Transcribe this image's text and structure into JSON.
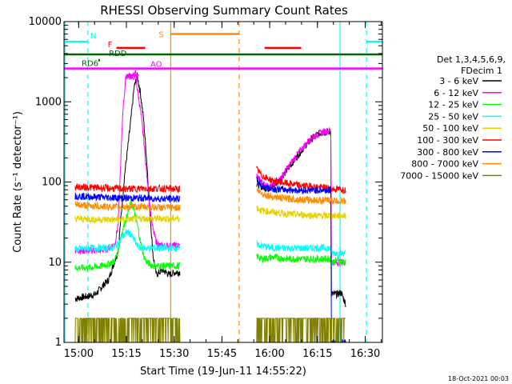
{
  "chart_data": {
    "type": "line",
    "title": "RHESSI Observing Summary Count Rates",
    "xlabel": "Start Time (19-Jun-11 14:55:22)",
    "ylabel": "Count Rate (s⁻¹ detector⁻¹)",
    "yscale": "log",
    "ylim": [
      1,
      10000
    ],
    "xlim_minutes": [
      0,
      100
    ],
    "x_ticks": [
      {
        "label": "15:00",
        "t": 4.6
      },
      {
        "label": "15:15",
        "t": 19.6
      },
      {
        "label": "15:30",
        "t": 34.6
      },
      {
        "label": "15:45",
        "t": 49.6
      },
      {
        "label": "16:00",
        "t": 64.6
      },
      {
        "label": "16:15",
        "t": 79.6
      },
      {
        "label": "16:30",
        "t": 94.6
      }
    ],
    "y_ticks": [
      {
        "label": "1",
        "v": 1
      },
      {
        "label": "10",
        "v": 10
      },
      {
        "label": "100",
        "v": 100
      },
      {
        "label": "1000",
        "v": 1000
      },
      {
        "label": "10000",
        "v": 10000
      }
    ],
    "legend": {
      "header_line1": "Det 1,3,4,5,6,9,",
      "header_line2": "FDecim 1",
      "entries": [
        {
          "label": "3 - 6 keV",
          "color": "#000000"
        },
        {
          "label": "6 - 12 keV",
          "color": "#ff00ff"
        },
        {
          "label": "12 - 25 keV",
          "color": "#00ff00"
        },
        {
          "label": "25 - 50 keV",
          "color": "#00ffff"
        },
        {
          "label": "50 - 100 keV",
          "color": "#e6d200"
        },
        {
          "label": "100 - 300 keV",
          "color": "#ff0000"
        },
        {
          "label": "300 - 800 keV",
          "color": "#0000ff"
        },
        {
          "label": "800 - 7000 keV",
          "color": "#ff8c00"
        },
        {
          "label": "7000 - 15000 keV",
          "color": "#808000"
        }
      ]
    },
    "gaps": [
      [
        0,
        3.5
      ],
      [
        36.5,
        60.5
      ],
      [
        96,
        100
      ]
    ],
    "series": [
      {
        "name": "3 - 6 keV",
        "color": "#000000",
        "points": [
          [
            3.5,
            3.5
          ],
          [
            5,
            3.6
          ],
          [
            8,
            3.8
          ],
          [
            10,
            4
          ],
          [
            12,
            5
          ],
          [
            14,
            6
          ],
          [
            15,
            8
          ],
          [
            17,
            14
          ],
          [
            18,
            40
          ],
          [
            19,
            120
          ],
          [
            20,
            260
          ],
          [
            21,
            600
          ],
          [
            22,
            1500
          ],
          [
            23,
            2100
          ],
          [
            24,
            1300
          ],
          [
            25,
            600
          ],
          [
            26,
            180
          ],
          [
            27,
            40
          ],
          [
            28,
            12
          ],
          [
            29,
            7
          ],
          [
            31,
            8
          ],
          [
            33,
            7
          ],
          [
            35,
            7.5
          ],
          [
            36.5,
            7.5
          ],
          [
            60.5,
            95
          ],
          [
            62,
            88
          ],
          [
            64,
            82
          ],
          [
            66,
            90
          ],
          [
            68,
            110
          ],
          [
            70,
            140
          ],
          [
            72,
            180
          ],
          [
            74,
            230
          ],
          [
            76,
            290
          ],
          [
            78,
            350
          ],
          [
            80,
            400
          ],
          [
            82,
            420
          ],
          [
            83.8,
            420
          ],
          [
            84,
            4
          ],
          [
            86,
            4
          ],
          [
            87,
            4.2
          ],
          [
            88.5,
            3
          ]
        ]
      },
      {
        "name": "6 - 12 keV",
        "color": "#ff00ff",
        "points": [
          [
            3.5,
            14
          ],
          [
            8,
            14
          ],
          [
            12,
            14
          ],
          [
            14,
            15
          ],
          [
            16,
            17
          ],
          [
            17,
            30
          ],
          [
            18,
            250
          ],
          [
            18.5,
            800
          ],
          [
            19.5,
            2100
          ],
          [
            22,
            2100
          ],
          [
            22.5,
            2300
          ],
          [
            23,
            1500
          ],
          [
            24,
            800
          ],
          [
            25,
            350
          ],
          [
            26,
            120
          ],
          [
            27,
            45
          ],
          [
            28,
            25
          ],
          [
            29,
            18
          ],
          [
            30,
            16
          ],
          [
            33,
            16
          ],
          [
            36.5,
            16
          ],
          [
            60.5,
            120
          ],
          [
            62,
            100
          ],
          [
            64,
            88
          ],
          [
            66,
            92
          ],
          [
            68,
            110
          ],
          [
            70,
            145
          ],
          [
            72,
            190
          ],
          [
            74,
            240
          ],
          [
            76,
            300
          ],
          [
            78,
            360
          ],
          [
            80,
            400
          ],
          [
            82,
            430
          ],
          [
            83.8,
            440
          ],
          [
            84,
            10
          ],
          [
            86,
            10
          ],
          [
            88.5,
            10
          ]
        ]
      },
      {
        "name": "12 - 25 keV",
        "color": "#00ff00",
        "points": [
          [
            3.5,
            8.5
          ],
          [
            8,
            8.5
          ],
          [
            12,
            9
          ],
          [
            14,
            9.5
          ],
          [
            16,
            10.5
          ],
          [
            17,
            14
          ],
          [
            18,
            22
          ],
          [
            19,
            30
          ],
          [
            20,
            40
          ],
          [
            21,
            55
          ],
          [
            22,
            45
          ],
          [
            23,
            30
          ],
          [
            24,
            18
          ],
          [
            25,
            12
          ],
          [
            26,
            10
          ],
          [
            28,
            9
          ],
          [
            30,
            9
          ],
          [
            33,
            9
          ],
          [
            36.5,
            9
          ],
          [
            60.5,
            12
          ],
          [
            62,
            11
          ],
          [
            66,
            11.5
          ],
          [
            70,
            11
          ],
          [
            75,
            11
          ],
          [
            80,
            11
          ],
          [
            83.8,
            11
          ],
          [
            84,
            10
          ],
          [
            86,
            10.5
          ],
          [
            88.5,
            10
          ]
        ]
      },
      {
        "name": "25 - 50 keV",
        "color": "#00ffff",
        "points": [
          [
            3.5,
            14.5
          ],
          [
            8,
            15
          ],
          [
            12,
            15
          ],
          [
            14,
            15
          ],
          [
            16,
            15.5
          ],
          [
            17,
            17
          ],
          [
            18,
            20
          ],
          [
            20,
            24
          ],
          [
            21,
            22
          ],
          [
            22,
            19
          ],
          [
            23,
            16
          ],
          [
            24,
            15
          ],
          [
            26,
            15
          ],
          [
            30,
            15
          ],
          [
            33,
            15
          ],
          [
            36.5,
            15
          ],
          [
            60.5,
            17
          ],
          [
            62,
            16
          ],
          [
            66,
            15
          ],
          [
            70,
            15
          ],
          [
            75,
            15
          ],
          [
            80,
            15
          ],
          [
            83.8,
            15
          ],
          [
            84,
            13
          ],
          [
            86,
            13
          ],
          [
            88.5,
            13
          ]
        ]
      },
      {
        "name": "50 - 100 keV",
        "color": "#e6d200",
        "points": [
          [
            3.5,
            35
          ],
          [
            10,
            34
          ],
          [
            15,
            34
          ],
          [
            20,
            34
          ],
          [
            25,
            35
          ],
          [
            30,
            35
          ],
          [
            36.5,
            35
          ],
          [
            60.5,
            48
          ],
          [
            62,
            44
          ],
          [
            66,
            42
          ],
          [
            70,
            40
          ],
          [
            75,
            39
          ],
          [
            80,
            38
          ],
          [
            83.8,
            38
          ],
          [
            84,
            38
          ],
          [
            88.5,
            38
          ]
        ]
      },
      {
        "name": "100 - 300 keV",
        "color": "#ff0000",
        "points": [
          [
            3.5,
            87
          ],
          [
            10,
            85
          ],
          [
            15,
            83
          ],
          [
            20,
            82
          ],
          [
            25,
            83
          ],
          [
            30,
            83
          ],
          [
            36.5,
            82
          ],
          [
            60.5,
            145
          ],
          [
            62,
            122
          ],
          [
            64,
            110
          ],
          [
            66,
            103
          ],
          [
            70,
            96
          ],
          [
            75,
            90
          ],
          [
            80,
            86
          ],
          [
            83.8,
            84
          ],
          [
            84,
            82
          ],
          [
            88.5,
            80
          ]
        ]
      },
      {
        "name": "300 - 800 keV",
        "color": "#0000ff",
        "points": [
          [
            3.5,
            67
          ],
          [
            10,
            65
          ],
          [
            15,
            64
          ],
          [
            20,
            63
          ],
          [
            25,
            63
          ],
          [
            30,
            62
          ],
          [
            36.5,
            62
          ],
          [
            60.5,
            105
          ],
          [
            62,
            90
          ],
          [
            64,
            85
          ],
          [
            66,
            82
          ],
          [
            70,
            80
          ],
          [
            75,
            79
          ],
          [
            80,
            79
          ],
          [
            83.8,
            79
          ],
          [
            84,
            1
          ],
          [
            88.5,
            1
          ]
        ]
      },
      {
        "name": "800 - 7000 keV",
        "color": "#ff8c00",
        "points": [
          [
            3.5,
            52
          ],
          [
            10,
            50
          ],
          [
            15,
            49
          ],
          [
            20,
            49
          ],
          [
            25,
            49
          ],
          [
            30,
            48
          ],
          [
            36.5,
            48
          ],
          [
            60.5,
            80
          ],
          [
            62,
            72
          ],
          [
            64,
            68
          ],
          [
            66,
            65
          ],
          [
            70,
            62
          ],
          [
            75,
            60
          ],
          [
            80,
            59
          ],
          [
            83.8,
            59
          ],
          [
            84,
            58
          ],
          [
            88.5,
            58
          ]
        ]
      },
      {
        "name": "7000 - 15000 keV",
        "color": "#808000",
        "noise": true,
        "level": 2,
        "dip": 1,
        "points": [
          [
            3.5,
            2
          ],
          [
            36.5,
            2
          ],
          [
            60.5,
            2
          ],
          [
            83.8,
            2
          ],
          [
            84,
            2
          ],
          [
            88.5,
            2
          ]
        ]
      }
    ],
    "flags": [
      {
        "label": "N",
        "color": "#00ffff",
        "y_value": 5600,
        "segments": [
          [
            0.5,
            7.5
          ],
          [
            95,
            100
          ]
        ]
      },
      {
        "label": "F",
        "color": "#ff0000",
        "y_value": 4700,
        "segments": [
          [
            16.5,
            25.5
          ],
          [
            63,
            74.5
          ]
        ]
      },
      {
        "label": "S",
        "color": "#ff8c00",
        "y_value": 7000,
        "segments": [
          [
            33.5,
            55
          ]
        ]
      },
      {
        "label": "RDD",
        "color": "#006400",
        "y_value": 3900,
        "segments": [
          [
            0,
            100
          ]
        ]
      },
      {
        "label": "RD6",
        "color": "#006400",
        "y_value": 3300,
        "segments": [
          [
            10.8,
            11.3
          ]
        ]
      },
      {
        "label": "AO",
        "color": "#ff00ff",
        "y_value": 2600,
        "segments": [
          [
            0,
            100
          ]
        ]
      },
      {
        "label": "A1",
        "color": "#ff00ff",
        "y_value": 2150,
        "segments": [
          [
            19.5,
            23.5
          ]
        ]
      }
    ],
    "vertical_markers": [
      {
        "t": 0.3,
        "color": "#00ffff",
        "style": "solid"
      },
      {
        "t": 7.5,
        "color": "#00ffff",
        "style": "dashed"
      },
      {
        "t": 33.5,
        "color": "#ff8c00",
        "style": "solid"
      },
      {
        "t": 55,
        "color": "#ff8c00",
        "style": "dashed"
      },
      {
        "t": 86.7,
        "color": "#00ffff",
        "style": "solid"
      },
      {
        "t": 95,
        "color": "#00ffff",
        "style": "dashed"
      }
    ],
    "footer": "18-Oct-2021 00:03"
  }
}
